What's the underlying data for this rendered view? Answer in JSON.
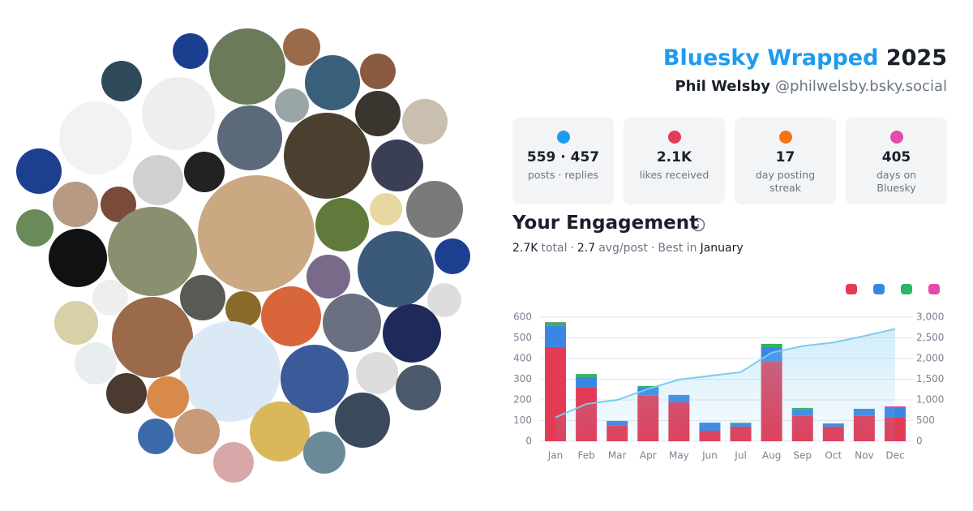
{
  "header": {
    "brand": "Bluesky Wrapped",
    "year": "2025",
    "name": "Phil Welsby",
    "handle": "@philwelsby.bsky.social"
  },
  "stats": [
    {
      "value": "559 · 457",
      "label": "posts · replies"
    },
    {
      "value": "2.1K",
      "label": "likes received"
    },
    {
      "value": "17",
      "label": "day posting streak"
    },
    {
      "value": "405",
      "label": "days on Bluesky"
    }
  ],
  "engagement": {
    "title": "Your Engagement",
    "summary": [
      "2.7K",
      "total",
      "·",
      "2.7",
      "avg/post",
      "·",
      "Best in",
      "January"
    ]
  },
  "chart_data": {
    "type": "bar",
    "stacked": true,
    "categories": [
      "Jan",
      "Feb",
      "Mar",
      "Apr",
      "May",
      "Jun",
      "Jul",
      "Aug",
      "Sep",
      "Oct",
      "Nov",
      "Dec"
    ],
    "series": [
      {
        "color": "#e23b56",
        "values": [
          455,
          259,
          75,
          220,
          188,
          51,
          71,
          384,
          122,
          71,
          122,
          114
        ]
      },
      {
        "color": "#3b86e4",
        "values": [
          105,
          51,
          23,
          39,
          36,
          39,
          14,
          71,
          31,
          15,
          35,
          51
        ]
      },
      {
        "color": "#2fb463",
        "values": [
          15,
          15,
          0,
          8,
          0,
          0,
          5,
          16,
          8,
          0,
          0,
          0
        ]
      },
      {
        "color": "#e64aa8",
        "values": [
          1,
          0,
          0,
          0,
          0,
          0,
          0,
          0,
          0,
          0,
          0,
          4
        ]
      },
      {
        "type": "line",
        "axis": "y2",
        "color": "#7ccbef",
        "values": [
          576,
          901,
          999,
          1266,
          1490,
          1580,
          1670,
          2141,
          2302,
          2388,
          2545,
          2714
        ]
      }
    ],
    "ylim": [
      0,
      600
    ],
    "yticks": [
      0,
      100,
      200,
      300,
      400,
      500,
      600
    ],
    "y2lim": [
      0,
      3000
    ],
    "y2ticks": [
      0,
      500,
      {
        "value": 1000,
        "label": "1,000"
      },
      {
        "value": 1500,
        "label": "1,500"
      },
      {
        "value": 2000,
        "label": "2,000"
      },
      {
        "value": 2500,
        "label": "2,500"
      },
      {
        "value": 3000,
        "label": "3,000"
      }
    ],
    "grid": true
  }
}
